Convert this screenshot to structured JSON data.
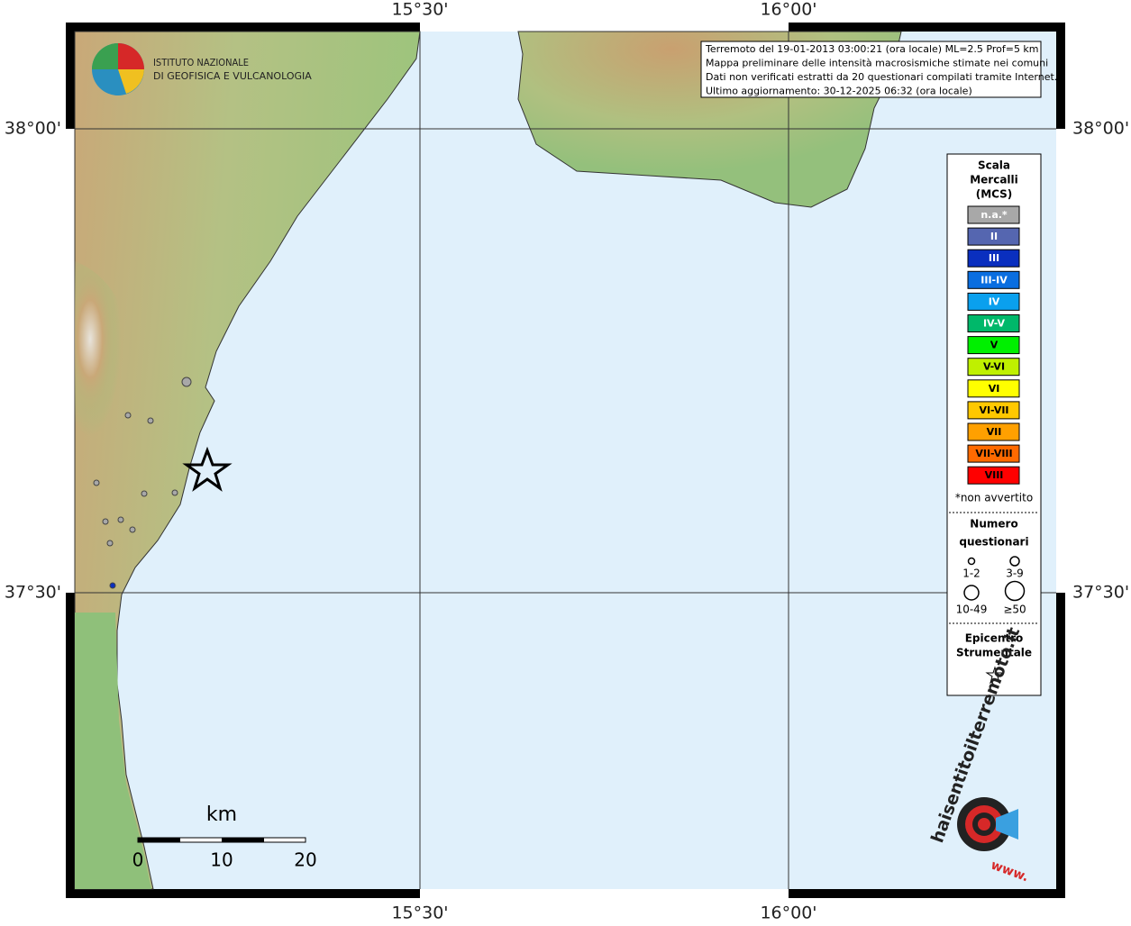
{
  "map": {
    "axes": {
      "top": [
        "15°30'",
        "16°00'"
      ],
      "bottom": [
        "15°30'",
        "16°00'"
      ],
      "left": [
        "38°00'",
        "37°30'"
      ],
      "right": [
        "38°00'",
        "37°30'"
      ]
    },
    "logo": {
      "line1": "ISTITUTO NAZIONALE",
      "line2": "DI GEOFISICA E VULCANOLOGIA"
    },
    "info": [
      "Terremoto del 19-01-2013 03:00:21 (ora locale) ML=2.5 Prof=5 km",
      "Mappa preliminare delle intensità macrosismiche stimate nei comuni",
      "Dati non verificati estratti da 20 questionari compilati tramite Internet.",
      "Ultimo aggiornamento: 30-12-2025 06:32 (ora locale)"
    ],
    "legend": {
      "title": [
        "Scala",
        "Mercalli",
        "(MCS)"
      ],
      "items": [
        {
          "label": "n.a.*",
          "color": "#a8a8a8"
        },
        {
          "label": "II",
          "color": "#5566b0"
        },
        {
          "label": "III",
          "color": "#0a2fbf"
        },
        {
          "label": "III-IV",
          "color": "#0a6ee0"
        },
        {
          "label": "IV",
          "color": "#0aa0ee"
        },
        {
          "label": "IV-V",
          "color": "#00b86a"
        },
        {
          "label": "V",
          "color": "#00f000"
        },
        {
          "label": "V-VI",
          "color": "#bff000"
        },
        {
          "label": "VI",
          "color": "#ffff00"
        },
        {
          "label": "VI-VII",
          "color": "#ffc800"
        },
        {
          "label": "VII",
          "color": "#ffa000"
        },
        {
          "label": "VII-VIII",
          "color": "#ff6a00"
        },
        {
          "label": "VIII",
          "color": "#ff0000"
        }
      ],
      "note": "*non avvertito",
      "count_title": [
        "Numero",
        "questionari"
      ],
      "sizes": [
        "1-2",
        "3-9",
        "10-49",
        "≥50"
      ],
      "epicenter": [
        "Epicentro",
        "Strumentale"
      ]
    },
    "scale": {
      "unit": "km",
      "labels": [
        "0",
        "10",
        "20"
      ]
    },
    "site": {
      "name": "haisentitoilterremoto.it",
      "prefix": "www."
    }
  }
}
